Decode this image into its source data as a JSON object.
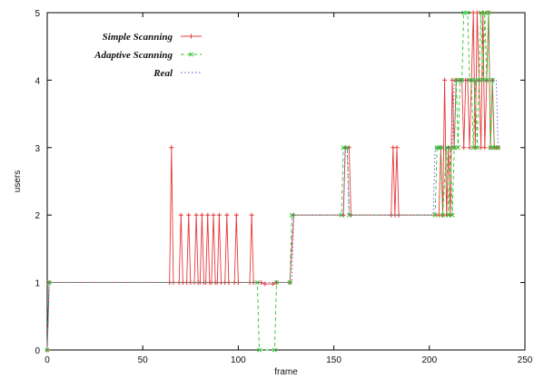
{
  "chart_data": {
    "type": "line",
    "title": "",
    "xlabel": "frame",
    "ylabel": "users",
    "xlim": [
      0,
      250
    ],
    "ylim": [
      0,
      5
    ],
    "x_ticks": [
      0,
      50,
      100,
      150,
      200,
      250
    ],
    "y_ticks": [
      0,
      1,
      2,
      3,
      4,
      5
    ],
    "grid": false,
    "legend_position": "top-left",
    "series": [
      {
        "name": "Simple Scanning",
        "color": "#e83838",
        "line_style": "solid",
        "marker": "plus",
        "points": [
          [
            0,
            0
          ],
          [
            1,
            1
          ],
          [
            64,
            1
          ],
          [
            65,
            3
          ],
          [
            66,
            1
          ],
          [
            69,
            1
          ],
          [
            70,
            2
          ],
          [
            71,
            1
          ],
          [
            73,
            1
          ],
          [
            74,
            2
          ],
          [
            75,
            1
          ],
          [
            77,
            1
          ],
          [
            78,
            2
          ],
          [
            79,
            1
          ],
          [
            80,
            1
          ],
          [
            81,
            2
          ],
          [
            82,
            1
          ],
          [
            83,
            1
          ],
          [
            84,
            2
          ],
          [
            85,
            1
          ],
          [
            86,
            1
          ],
          [
            87,
            2
          ],
          [
            88,
            1
          ],
          [
            89,
            1
          ],
          [
            90,
            2
          ],
          [
            91,
            1
          ],
          [
            93,
            1
          ],
          [
            94,
            2
          ],
          [
            95,
            1
          ],
          [
            98,
            1
          ],
          [
            99,
            2
          ],
          [
            100,
            1
          ],
          [
            106,
            1
          ],
          [
            107,
            2
          ],
          [
            108,
            1
          ],
          [
            112,
            1
          ],
          [
            114,
            0.98
          ],
          [
            118,
            0.98
          ],
          [
            120,
            1
          ],
          [
            127,
            1
          ],
          [
            129,
            2
          ],
          [
            155,
            2
          ],
          [
            156,
            3
          ],
          [
            158,
            3
          ],
          [
            159,
            2
          ],
          [
            180,
            2
          ],
          [
            181,
            3
          ],
          [
            182,
            2
          ],
          [
            183,
            3
          ],
          [
            184,
            2
          ],
          [
            205,
            2
          ],
          [
            206,
            3
          ],
          [
            207,
            2
          ],
          [
            208,
            4
          ],
          [
            209,
            2
          ],
          [
            210,
            3
          ],
          [
            211,
            2
          ],
          [
            212,
            4
          ],
          [
            213,
            3
          ],
          [
            214,
            4
          ],
          [
            216,
            4
          ],
          [
            217,
            4
          ],
          [
            218,
            3
          ],
          [
            219,
            4
          ],
          [
            220,
            4
          ],
          [
            221,
            3
          ],
          [
            222,
            4
          ],
          [
            223,
            5
          ],
          [
            224,
            3
          ],
          [
            225,
            5
          ],
          [
            226,
            4
          ],
          [
            227,
            3
          ],
          [
            228,
            5
          ],
          [
            229,
            3
          ],
          [
            230,
            4
          ],
          [
            231,
            5
          ],
          [
            232,
            3
          ],
          [
            233,
            4
          ],
          [
            234,
            3
          ],
          [
            235,
            3
          ],
          [
            236,
            3
          ]
        ]
      },
      {
        "name": "Adaptive Scanning",
        "color": "#2ec22e",
        "line_style": "dashed",
        "marker": "x",
        "points": [
          [
            0,
            0
          ],
          [
            1,
            1
          ],
          [
            110,
            1
          ],
          [
            111,
            0
          ],
          [
            119,
            0
          ],
          [
            120,
            1
          ],
          [
            127,
            1
          ],
          [
            128,
            2
          ],
          [
            154,
            2
          ],
          [
            155,
            3
          ],
          [
            157,
            3
          ],
          [
            158,
            2
          ],
          [
            203,
            2
          ],
          [
            204,
            3
          ],
          [
            205,
            3
          ],
          [
            206,
            3
          ],
          [
            207,
            2
          ],
          [
            209,
            3
          ],
          [
            210,
            2
          ],
          [
            211,
            3
          ],
          [
            212,
            2
          ],
          [
            213,
            3
          ],
          [
            214,
            4
          ],
          [
            215,
            3
          ],
          [
            216,
            4
          ],
          [
            217,
            4
          ],
          [
            218,
            5
          ],
          [
            220,
            5
          ],
          [
            221,
            4
          ],
          [
            222,
            4
          ],
          [
            223,
            3
          ],
          [
            224,
            4
          ],
          [
            225,
            3
          ],
          [
            226,
            4
          ],
          [
            227,
            5
          ],
          [
            228,
            4
          ],
          [
            229,
            5
          ],
          [
            230,
            4
          ],
          [
            231,
            5
          ],
          [
            232,
            3
          ],
          [
            233,
            4
          ],
          [
            234,
            3
          ],
          [
            236,
            3
          ]
        ]
      },
      {
        "name": "Real",
        "color": "#6a4ad8",
        "line_style": "dotted",
        "marker": "none",
        "points": [
          [
            0,
            0
          ],
          [
            1,
            1
          ],
          [
            128,
            1
          ],
          [
            129,
            2
          ],
          [
            155,
            2
          ],
          [
            156,
            3
          ],
          [
            157,
            3
          ],
          [
            158,
            2
          ],
          [
            202,
            2
          ],
          [
            203,
            3
          ],
          [
            212,
            3
          ],
          [
            213,
            4
          ],
          [
            235,
            4
          ],
          [
            236,
            3
          ]
        ]
      }
    ]
  }
}
